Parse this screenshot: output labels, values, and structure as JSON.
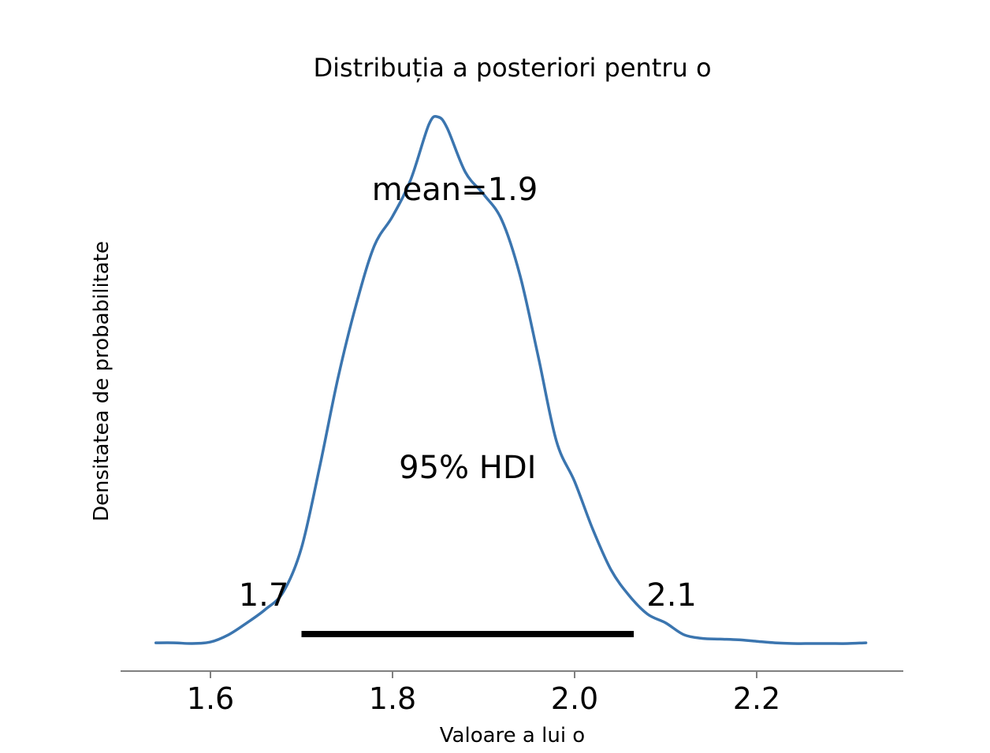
{
  "chart_data": {
    "type": "area",
    "title": "Distribuția a posteriori pentru o",
    "xlabel": "Valoare a lui o",
    "ylabel": "Densitatea de probabilitate",
    "xlim": [
      1.5,
      2.36
    ],
    "ylim": [
      0,
      7.6
    ],
    "xticks": [
      1.6,
      1.8,
      2.0,
      2.2
    ],
    "xtick_labels": [
      "1.6",
      "1.8",
      "2.0",
      "2.2"
    ],
    "yaxis_visible": false,
    "grid": false,
    "series": [
      {
        "color": "#3b75af",
        "x": [
          1.54,
          1.56,
          1.58,
          1.6,
          1.62,
          1.64,
          1.66,
          1.68,
          1.7,
          1.72,
          1.74,
          1.76,
          1.78,
          1.8,
          1.82,
          1.84,
          1.85,
          1.86,
          1.88,
          1.9,
          1.92,
          1.94,
          1.96,
          1.98,
          2.0,
          2.02,
          2.04,
          2.06,
          2.08,
          2.1,
          2.12,
          2.14,
          2.16,
          2.18,
          2.2,
          2.22,
          2.24,
          2.26,
          2.28,
          2.3,
          2.32
        ],
        "y": [
          0.01,
          0.01,
          0.0,
          0.02,
          0.12,
          0.28,
          0.46,
          0.7,
          1.3,
          2.4,
          3.6,
          4.6,
          5.4,
          5.8,
          6.3,
          7.05,
          7.15,
          7.0,
          6.4,
          6.1,
          5.75,
          5.0,
          3.9,
          2.75,
          2.2,
          1.55,
          1.0,
          0.65,
          0.4,
          0.28,
          0.12,
          0.07,
          0.06,
          0.05,
          0.03,
          0.01,
          0.0,
          0.0,
          0.0,
          0.0,
          0.01
        ]
      }
    ],
    "hdi": {
      "lower": 1.7,
      "upper": 2.065,
      "label": "95% HDI",
      "lower_label": "1.7",
      "upper_label": "2.1"
    },
    "mean": {
      "value": 1.9,
      "label": "mean=1.9"
    }
  }
}
